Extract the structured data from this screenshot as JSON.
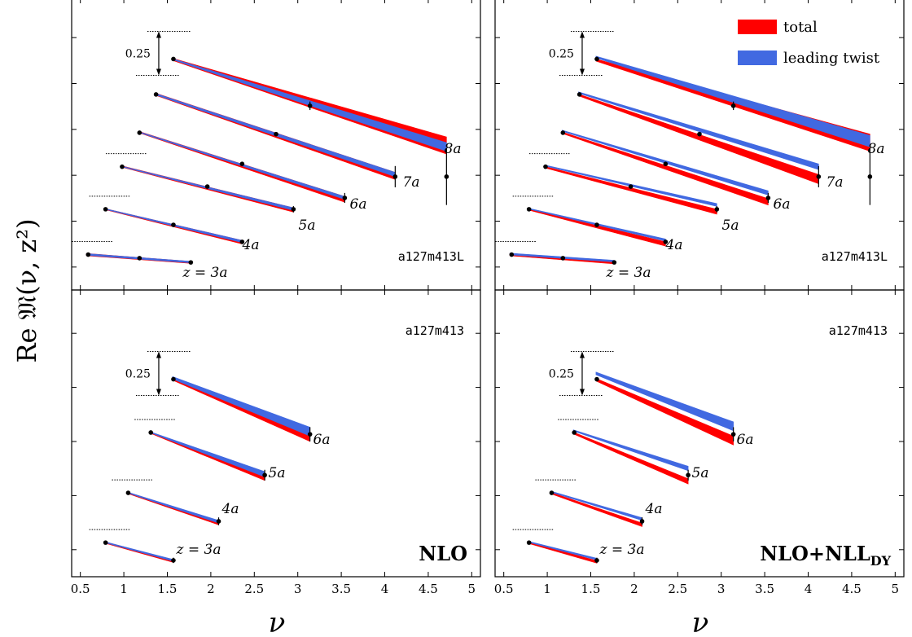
{
  "figure": {
    "ylabel": "Re 𝔐(ν, z²)",
    "xlabel": "ν",
    "scale_label": "0.25"
  },
  "legend": {
    "entries": [
      {
        "label": "total",
        "color": "#ff0000"
      },
      {
        "label": "leading twist",
        "color": "#4169e1"
      }
    ]
  },
  "chart_data": [
    {
      "type": "line",
      "panel": "top-left",
      "ensemble": "a127m413L",
      "method": "",
      "xlim": [
        0.4,
        5.1
      ],
      "xticks": [],
      "curves": [
        {
          "label": "z = 3a",
          "x": [
            0.59,
            1.18,
            1.77
          ],
          "y": [
            0.0,
            -0.025,
            -0.055
          ],
          "err": [
            0.0,
            0.01,
            0.012
          ],
          "total_band": [
            [
              0.57,
              0.008,
              -0.008
            ],
            [
              1.77,
              -0.048,
              -0.062
            ]
          ],
          "twist_band": [
            [
              0.57,
              0.007,
              -0.005
            ],
            [
              1.77,
              -0.047,
              -0.058
            ]
          ]
        },
        {
          "label": "4a",
          "x": [
            0.79,
            1.57,
            2.36
          ],
          "y": [
            0.32,
            0.21,
            0.09
          ],
          "err": [
            0.0,
            0.005,
            0.012
          ],
          "total_band": [
            [
              0.78,
              0.325,
              0.318
            ],
            [
              2.36,
              0.1,
              0.075
            ]
          ],
          "twist_band": [
            [
              0.78,
              0.325,
              0.32
            ],
            [
              2.36,
              0.1,
              0.085
            ]
          ]
        },
        {
          "label": "5a",
          "x": [
            0.98,
            1.96,
            2.95
          ],
          "y": [
            0.62,
            0.48,
            0.32
          ],
          "err": [
            0.0,
            0.005,
            0.022
          ],
          "total_band": [
            [
              0.97,
              0.627,
              0.618
            ],
            [
              2.95,
              0.33,
              0.3
            ]
          ],
          "twist_band": [
            [
              0.97,
              0.625,
              0.62
            ],
            [
              2.95,
              0.33,
              0.312
            ]
          ]
        },
        {
          "label": "6a",
          "x": [
            1.18,
            2.36,
            3.54
          ],
          "y": [
            0.86,
            0.64,
            0.4
          ],
          "err": [
            0.0,
            0.012,
            0.035
          ],
          "total_band": [
            [
              1.17,
              0.87,
              0.86
            ],
            [
              3.54,
              0.41,
              0.37
            ]
          ],
          "twist_band": [
            [
              1.17,
              0.868,
              0.862
            ],
            [
              3.54,
              0.41,
              0.39
            ]
          ]
        },
        {
          "label": "7a",
          "x": [
            1.37,
            2.75,
            4.12
          ],
          "y": [
            1.13,
            0.85,
            0.55
          ],
          "err": [
            0.0,
            0.01,
            0.075
          ],
          "total_band": [
            [
              1.36,
              1.14,
              1.125
            ],
            [
              4.12,
              0.58,
              0.53
            ]
          ],
          "twist_band": [
            [
              1.36,
              1.138,
              1.128
            ],
            [
              4.12,
              0.58,
              0.55
            ]
          ]
        },
        {
          "label": "8a",
          "x": [
            1.57,
            3.14,
            4.71
          ],
          "y": [
            1.38,
            1.05,
            0.55
          ],
          "err": [
            0.0,
            0.03,
            0.2
          ],
          "total_band": [
            [
              1.56,
              1.385,
              1.37
            ],
            [
              4.71,
              0.83,
              0.71
            ]
          ],
          "twist_band": [
            [
              1.56,
              1.383,
              1.375
            ],
            [
              4.71,
              0.79,
              0.73
            ]
          ]
        }
      ]
    },
    {
      "type": "line",
      "panel": "top-right",
      "ensemble": "a127m413L",
      "method": "",
      "xlim": [
        0.4,
        5.1
      ],
      "xticks": [],
      "curves": [
        {
          "label": "z = 3a",
          "x": [
            0.59,
            1.18,
            1.77
          ],
          "y": [
            0.0,
            -0.025,
            -0.055
          ],
          "err": [
            0.0,
            0.01,
            0.012
          ],
          "total_band": [
            [
              0.57,
              0.008,
              -0.008
            ],
            [
              1.77,
              -0.05,
              -0.065
            ]
          ],
          "twist_band": [
            [
              0.57,
              0.01,
              -0.002
            ],
            [
              1.77,
              -0.04,
              -0.052
            ]
          ]
        },
        {
          "label": "4a",
          "x": [
            0.79,
            1.57,
            2.36
          ],
          "y": [
            0.32,
            0.21,
            0.09
          ],
          "err": [
            0.0,
            0.005,
            0.012
          ],
          "total_band": [
            [
              0.78,
              0.323,
              0.315
            ],
            [
              2.36,
              0.09,
              0.06
            ]
          ],
          "twist_band": [
            [
              0.78,
              0.328,
              0.322
            ],
            [
              2.36,
              0.11,
              0.095
            ]
          ]
        },
        {
          "label": "5a",
          "x": [
            0.98,
            1.96,
            2.95
          ],
          "y": [
            0.62,
            0.48,
            0.32
          ],
          "err": [
            0.0,
            0.005,
            0.022
          ],
          "total_band": [
            [
              0.97,
              0.622,
              0.612
            ],
            [
              2.95,
              0.32,
              0.285
            ]
          ],
          "twist_band": [
            [
              0.97,
              0.632,
              0.625
            ],
            [
              2.95,
              0.36,
              0.34
            ]
          ]
        },
        {
          "label": "6a",
          "x": [
            1.18,
            2.36,
            3.54
          ],
          "y": [
            0.86,
            0.64,
            0.4
          ],
          "err": [
            0.0,
            0.012,
            0.035
          ],
          "total_band": [
            [
              1.17,
              0.865,
              0.855
            ],
            [
              3.54,
              0.395,
              0.35
            ]
          ],
          "twist_band": [
            [
              1.17,
              0.878,
              0.87
            ],
            [
              3.54,
              0.45,
              0.42
            ]
          ]
        },
        {
          "label": "7a",
          "x": [
            1.37,
            2.75,
            4.12
          ],
          "y": [
            1.13,
            0.85,
            0.55
          ],
          "err": [
            0.0,
            0.01,
            0.075
          ],
          "total_band": [
            [
              1.36,
              1.132,
              1.12
            ],
            [
              4.12,
              0.565,
              0.5
            ]
          ],
          "twist_band": [
            [
              1.36,
              1.148,
              1.138
            ],
            [
              4.12,
              0.64,
              0.6
            ]
          ]
        },
        {
          "label": "8a",
          "x": [
            1.57,
            3.14,
            4.71
          ],
          "y": [
            1.38,
            1.05,
            0.55
          ],
          "err": [
            0.0,
            0.03,
            0.2
          ],
          "total_band": [
            [
              1.56,
              1.38,
              1.365
            ],
            [
              4.71,
              0.85,
              0.73
            ]
          ],
          "twist_band": [
            [
              1.56,
              1.4,
              1.388
            ],
            [
              4.71,
              0.84,
              0.76
            ]
          ]
        }
      ]
    },
    {
      "type": "line",
      "panel": "bottom-left",
      "ensemble": "a127m413",
      "method": "NLO",
      "xlim": [
        0.4,
        5.1
      ],
      "xticks": [
        "0.5",
        "1",
        "1.5",
        "2",
        "2.5",
        "3",
        "3.5",
        "4",
        "4.5",
        "5"
      ],
      "curves": [
        {
          "label": "z = 3a",
          "x": [
            0.79,
            1.57
          ],
          "y": [
            0.36,
            0.26
          ],
          "err": [
            0.0,
            0.015
          ],
          "total_band": [
            [
              0.78,
              0.365,
              0.357
            ],
            [
              1.57,
              0.262,
              0.248
            ]
          ],
          "twist_band": [
            [
              0.78,
              0.365,
              0.36
            ],
            [
              1.57,
              0.265,
              0.255
            ]
          ]
        },
        {
          "label": "4a",
          "x": [
            1.05,
            2.09
          ],
          "y": [
            0.64,
            0.48
          ],
          "err": [
            0.0,
            0.022
          ],
          "total_band": [
            [
              1.04,
              0.645,
              0.637
            ],
            [
              2.09,
              0.48,
              0.46
            ]
          ],
          "twist_band": [
            [
              1.04,
              0.645,
              0.64
            ],
            [
              2.09,
              0.485,
              0.47
            ]
          ]
        },
        {
          "label": "5a",
          "x": [
            1.31,
            2.62
          ],
          "y": [
            0.98,
            0.74
          ],
          "err": [
            0.0,
            0.03
          ],
          "total_band": [
            [
              1.3,
              0.985,
              0.977
            ],
            [
              2.62,
              0.74,
              0.71
            ]
          ],
          "twist_band": [
            [
              1.3,
              0.985,
              0.98
            ],
            [
              2.62,
              0.76,
              0.73
            ]
          ]
        },
        {
          "label": "6a",
          "x": [
            1.57,
            3.14
          ],
          "y": [
            1.28,
            0.97
          ],
          "err": [
            0.0,
            0.04
          ],
          "total_band": [
            [
              1.56,
              1.29,
              1.275
            ],
            [
              3.14,
              0.98,
              0.93
            ]
          ],
          "twist_band": [
            [
              1.56,
              1.295,
              1.282
            ],
            [
              3.14,
              1.01,
              0.96
            ]
          ]
        }
      ]
    },
    {
      "type": "line",
      "panel": "bottom-right",
      "ensemble": "a127m413",
      "method": "NLO+NLL",
      "method_sub": "DY",
      "xlim": [
        0.4,
        5.1
      ],
      "xticks": [
        "0.5",
        "1",
        "1.5",
        "2",
        "2.5",
        "3",
        "3.5",
        "4",
        "4.5",
        "5"
      ],
      "curves": [
        {
          "label": "z = 3a",
          "x": [
            0.79,
            1.57
          ],
          "y": [
            0.36,
            0.26
          ],
          "err": [
            0.0,
            0.015
          ],
          "total_band": [
            [
              0.78,
              0.365,
              0.356
            ],
            [
              1.57,
              0.258,
              0.244
            ]
          ],
          "twist_band": [
            [
              0.78,
              0.368,
              0.362
            ],
            [
              1.57,
              0.272,
              0.262
            ]
          ]
        },
        {
          "label": "4a",
          "x": [
            1.05,
            2.09
          ],
          "y": [
            0.64,
            0.48
          ],
          "err": [
            0.0,
            0.022
          ],
          "total_band": [
            [
              1.04,
              0.643,
              0.635
            ],
            [
              2.09,
              0.47,
              0.45
            ]
          ],
          "twist_band": [
            [
              1.04,
              0.65,
              0.644
            ],
            [
              2.09,
              0.5,
              0.485
            ]
          ]
        },
        {
          "label": "5a",
          "x": [
            1.31,
            2.62
          ],
          "y": [
            0.98,
            0.74
          ],
          "err": [
            0.0,
            0.03
          ],
          "total_band": [
            [
              1.3,
              0.982,
              0.972
            ],
            [
              2.62,
              0.72,
              0.69
            ]
          ],
          "twist_band": [
            [
              1.3,
              0.995,
              0.988
            ],
            [
              2.62,
              0.79,
              0.765
            ]
          ]
        },
        {
          "label": "6a",
          "x": [
            1.57,
            3.14
          ],
          "y": [
            1.28,
            0.97
          ],
          "err": [
            0.0,
            0.04
          ],
          "total_band": [
            [
              1.56,
              1.285,
              1.27
            ],
            [
              3.14,
              0.96,
              0.91
            ]
          ],
          "twist_band": [
            [
              1.56,
              1.32,
              1.305
            ],
            [
              3.14,
              1.04,
              0.99
            ]
          ]
        }
      ]
    }
  ]
}
